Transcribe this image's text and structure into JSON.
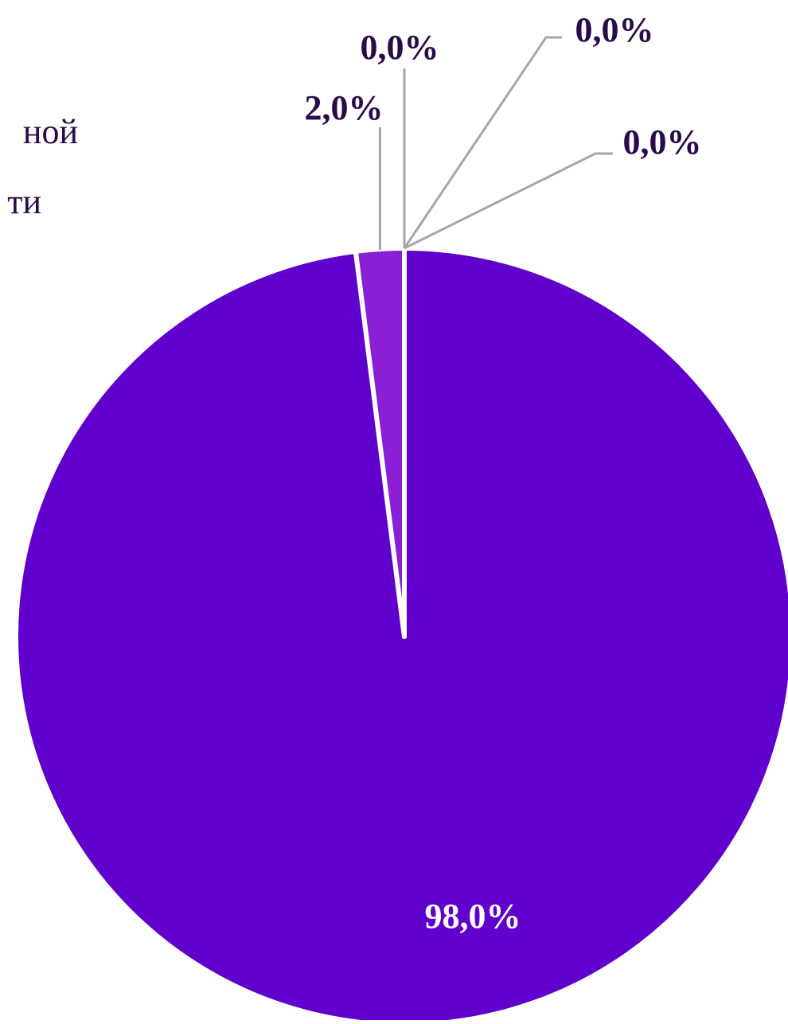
{
  "title_lines": [
    "ной",
    "ти"
  ],
  "chart_data": {
    "type": "pie",
    "title": "",
    "values": [
      98.0,
      2.0,
      0.0,
      0.0,
      0.0
    ],
    "labels": [
      "98,0%",
      "2,0%",
      "0,0%",
      "0,0%",
      "0,0%"
    ],
    "colors": [
      "#6000cc",
      "#8a1fd6",
      "#6000cc",
      "#6000cc",
      "#6000cc"
    ],
    "label_color_inside": "#ffffff",
    "label_color_outside": "#2b0a4a",
    "leader_line_color": "#a6a6a6",
    "legend": "none"
  }
}
